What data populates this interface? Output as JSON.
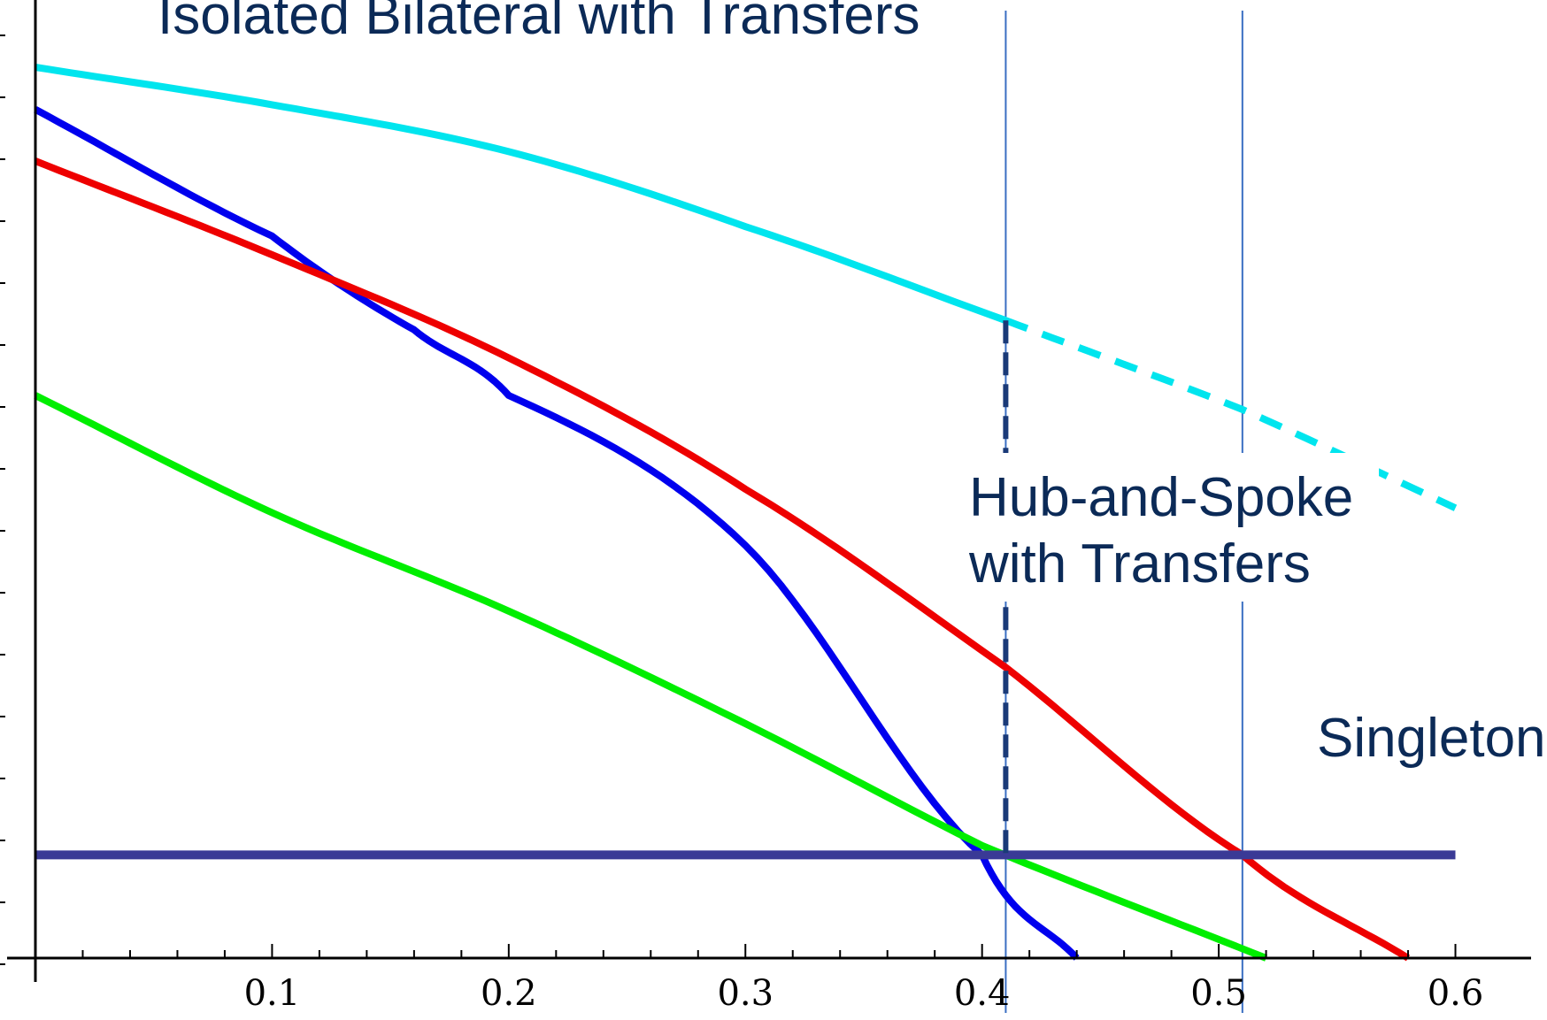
{
  "chart_data": {
    "type": "line",
    "title": "",
    "xlabel": "",
    "ylabel": "",
    "xlim": [
      0,
      0.62
    ],
    "ylim": [
      0,
      1
    ],
    "x_ticks": [
      0.1,
      0.2,
      0.3,
      0.4,
      0.5,
      0.6
    ],
    "x_tick_labels": [
      "0.1",
      "0.2",
      "0.3",
      "0.4",
      "0.5",
      "0.6"
    ],
    "grid": false,
    "annotations": [
      {
        "id": "isolated",
        "text": "Isolated Bilateral with Transfers"
      },
      {
        "id": "hub1",
        "text": "Hub-and-Spoke"
      },
      {
        "id": "hub2",
        "text": "with Transfers"
      },
      {
        "id": "singleton",
        "text": "Singleton"
      }
    ],
    "vertical_lines": [
      0.41,
      0.51
    ],
    "series": [
      {
        "color": "#00e5ee",
        "style": "solid",
        "x": [
          0,
          0.1,
          0.2,
          0.3,
          0.41
        ],
        "y": [
          0.95,
          0.91,
          0.86,
          0.78,
          0.68
        ]
      },
      {
        "color": "#00e5ee",
        "style": "dashed",
        "x": [
          0.41,
          0.51,
          0.6
        ],
        "y": [
          0.68,
          0.585,
          0.48
        ]
      },
      {
        "color": "#0000ee",
        "style": "solid",
        "x": [
          0,
          0.1,
          0.16,
          0.2,
          0.3,
          0.4,
          0.44
        ],
        "y": [
          0.905,
          0.77,
          0.67,
          0.6,
          0.44,
          0.11,
          0.0
        ]
      },
      {
        "color": "#ee0000",
        "style": "solid",
        "x": [
          0,
          0.1,
          0.2,
          0.3,
          0.41,
          0.51,
          0.58
        ],
        "y": [
          0.85,
          0.75,
          0.64,
          0.5,
          0.31,
          0.11,
          0.0
        ]
      },
      {
        "color": "#00ee00",
        "style": "solid",
        "x": [
          0,
          0.1,
          0.2,
          0.3,
          0.4,
          0.52
        ],
        "y": [
          0.6,
          0.475,
          0.37,
          0.25,
          0.12,
          0.0
        ]
      },
      {
        "color": "#3a3a96",
        "style": "solid",
        "x": [
          0,
          0.6
        ],
        "y": [
          0.11,
          0.11
        ]
      },
      {
        "color": "#1a3a78",
        "style": "dashed",
        "x": [
          0.41,
          0.41
        ],
        "y": [
          0.68,
          0.11
        ]
      }
    ]
  }
}
